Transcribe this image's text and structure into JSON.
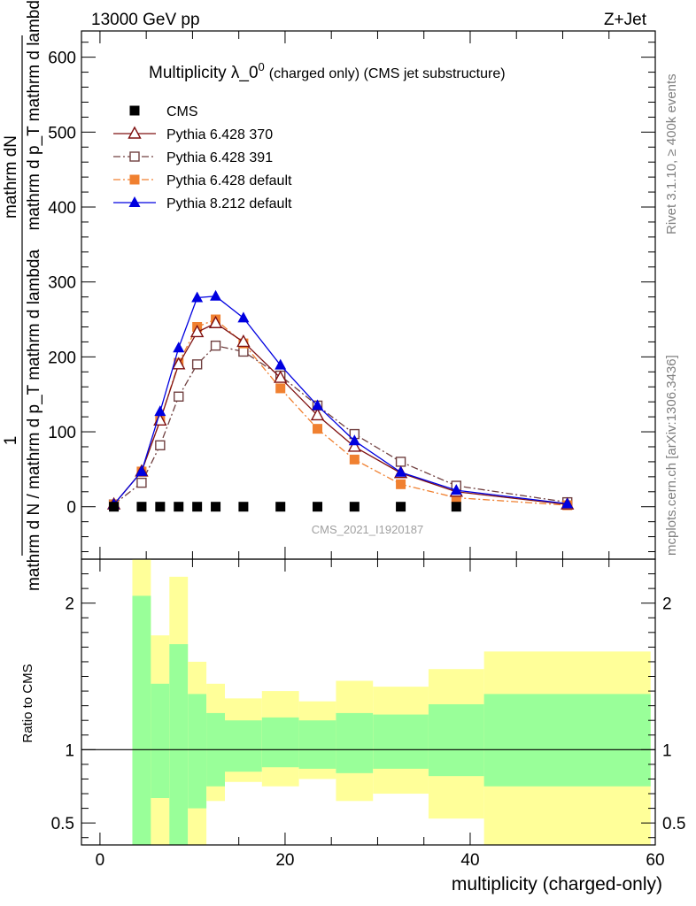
{
  "header": {
    "left_label": "13000 GeV pp",
    "right_label": "Z+Jet"
  },
  "side_labels": {
    "rivet": "Rivet 3.1.10, ≥ 400k events",
    "mcplots": "mcplots.cern.ch [arXiv:1306.3436]"
  },
  "chart_data": [
    {
      "type": "scatter",
      "title": "Multiplicity λ_0",
      "title_sup": "0",
      "subtitle": "(charged only) (CMS jet substructure)",
      "analysis_id": "CMS_2021_I1920187",
      "xlabel": "multiplicity (charged-only)",
      "ylabel_line1": "1",
      "ylabel_line2": "mathrm dN",
      "ylabel_numerator": "mathrm d N / mathrm d p_T mathrm d lambda",
      "ylabel_denominator": "mathrm d N / mathrm d p_T mathrm d lambda",
      "ylabel_top": "mathrm d p_T mathrm d lambda",
      "xlim": [
        -2,
        60
      ],
      "ylim": [
        -70,
        635
      ],
      "x_ticks": [
        0,
        20,
        40,
        60
      ],
      "y_ticks": [
        0,
        100,
        200,
        300,
        400,
        500,
        600
      ],
      "legend_position": "top-left",
      "series": [
        {
          "name": "CMS",
          "color": "#000000",
          "marker": "filled-square",
          "line": "none",
          "x": [
            1.5,
            4.5,
            6.5,
            8.5,
            10.5,
            12.5,
            15.5,
            19.5,
            23.5,
            27.5,
            32.5,
            38.5
          ],
          "y": [
            0,
            0,
            0,
            0,
            0,
            0,
            0,
            0,
            0,
            0,
            0,
            0
          ]
        },
        {
          "name": "Pythia 6.428 370",
          "color": "#7f1010",
          "marker": "open-triangle",
          "line": "solid",
          "x": [
            1.5,
            4.5,
            6.5,
            8.5,
            10.5,
            12.5,
            15.5,
            19.5,
            23.5,
            27.5,
            32.5,
            38.5,
            50.5
          ],
          "y": [
            3,
            47,
            115,
            190,
            233,
            245,
            220,
            172,
            122,
            80,
            45,
            20,
            3
          ]
        },
        {
          "name": "Pythia 6.428 391",
          "color": "#704040",
          "marker": "open-square",
          "line": "dash-dot",
          "x": [
            1.5,
            4.5,
            6.5,
            8.5,
            10.5,
            12.5,
            15.5,
            19.5,
            23.5,
            27.5,
            32.5,
            38.5,
            50.5
          ],
          "y": [
            3,
            32,
            82,
            147,
            190,
            215,
            207,
            175,
            135,
            97,
            60,
            28,
            6
          ]
        },
        {
          "name": "Pythia 6.428 default",
          "color": "#f08030",
          "marker": "filled-square",
          "line": "dash-dot",
          "x": [
            1.5,
            4.5,
            6.5,
            8.5,
            10.5,
            12.5,
            15.5,
            19.5,
            23.5,
            27.5,
            32.5,
            38.5,
            50.5
          ],
          "y": [
            3,
            47,
            115,
            192,
            240,
            250,
            218,
            158,
            104,
            63,
            30,
            12,
            2
          ]
        },
        {
          "name": "Pythia 8.212 default",
          "color": "#0000e0",
          "marker": "filled-triangle",
          "line": "solid",
          "x": [
            1.5,
            4.5,
            6.5,
            8.5,
            10.5,
            12.5,
            15.5,
            19.5,
            23.5,
            27.5,
            32.5,
            38.5,
            50.5
          ],
          "y": [
            3,
            47,
            127,
            212,
            279,
            281,
            252,
            189,
            135,
            88,
            46,
            22,
            4
          ]
        }
      ]
    },
    {
      "type": "area",
      "ylabel": "Ratio to CMS",
      "xlim": [
        -2,
        60
      ],
      "ylim": [
        0.35,
        2.3
      ],
      "y_ticks": [
        0.5,
        1,
        2
      ],
      "y_tick_labels": [
        "0.5",
        "1",
        "2"
      ],
      "reference_line": 1,
      "bands": {
        "edges": [
          3.5,
          5.5,
          7.5,
          9.5,
          11.5,
          13.5,
          17.5,
          21.5,
          25.5,
          29.5,
          35.5,
          41.5,
          59.5
        ],
        "green_color": "#99ff99",
        "yellow_color": "#ffff99",
        "green_low": [
          0.35,
          0.67,
          0.35,
          0.6,
          0.75,
          0.85,
          0.88,
          0.87,
          0.84,
          0.87,
          0.82,
          0.75
        ],
        "green_high": [
          2.05,
          1.45,
          1.72,
          1.38,
          1.25,
          1.2,
          1.22,
          1.2,
          1.25,
          1.24,
          1.31,
          1.38
        ],
        "yellow_low": [
          0.35,
          0.35,
          0.35,
          0.35,
          0.65,
          0.78,
          0.75,
          0.8,
          0.65,
          0.7,
          0.53,
          0.35
        ],
        "yellow_high": [
          2.3,
          1.78,
          2.18,
          1.6,
          1.45,
          1.35,
          1.4,
          1.33,
          1.47,
          1.43,
          1.55,
          1.67
        ]
      }
    }
  ]
}
